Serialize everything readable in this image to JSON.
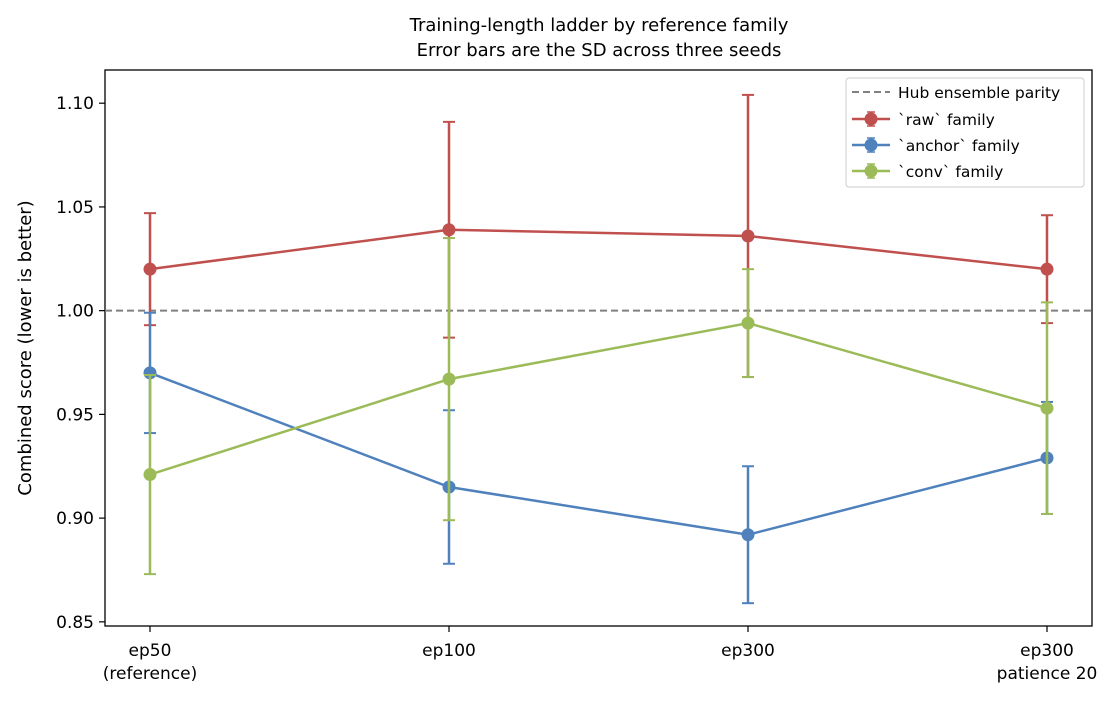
{
  "chart_data": {
    "type": "line",
    "title": "Training-length ladder by reference family",
    "subtitle": "Error bars are the SD across three seeds",
    "xlabel": "",
    "ylabel": "Combined score (lower is better)",
    "categories": [
      [
        "ep50",
        "(reference)"
      ],
      [
        "ep100"
      ],
      [
        "ep300"
      ],
      [
        "ep300",
        "patience 20"
      ]
    ],
    "ylim": [
      0.848,
      1.116
    ],
    "yticks": [
      "0.85",
      "0.90",
      "0.95",
      "1.00",
      "1.05",
      "1.10"
    ],
    "grid": false,
    "legend_position": "top-right",
    "reference_line": {
      "name": "Hub ensemble parity",
      "value": 1.0,
      "color": "#808080",
      "style": "dashed"
    },
    "series": [
      {
        "name": "`raw` family",
        "color": "#c0504d",
        "values": [
          1.02,
          1.039,
          1.036,
          1.02
        ],
        "sd": [
          0.027,
          0.052,
          0.068,
          0.026
        ]
      },
      {
        "name": "`anchor` family",
        "color": "#4f81bd",
        "values": [
          0.97,
          0.915,
          0.892,
          0.929
        ],
        "sd": [
          0.029,
          0.037,
          0.033,
          0.027
        ]
      },
      {
        "name": "`conv` family",
        "color": "#9bbb59",
        "values": [
          0.921,
          0.967,
          0.994,
          0.953
        ],
        "sd": [
          0.048,
          0.068,
          0.026,
          0.051
        ]
      }
    ]
  }
}
